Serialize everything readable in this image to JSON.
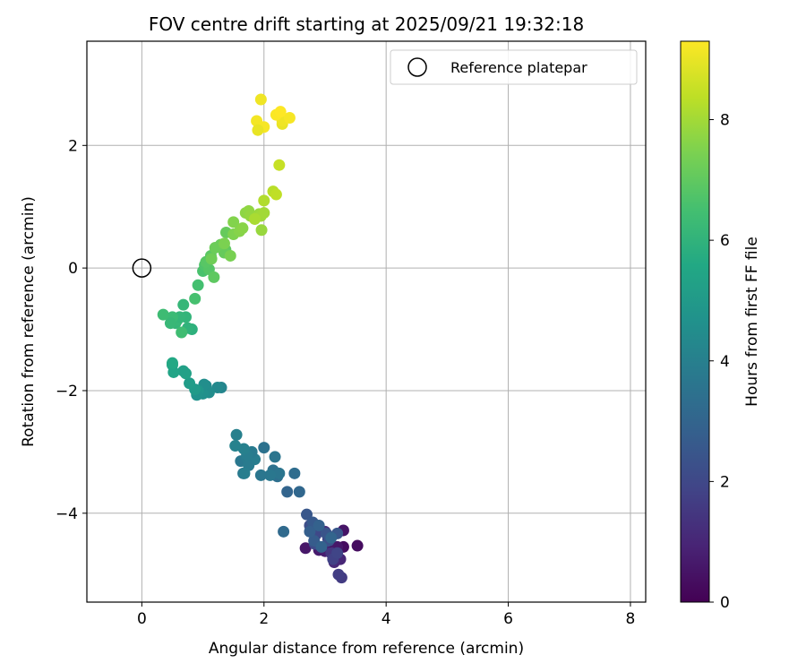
{
  "chart_data": {
    "type": "scatter",
    "title": "FOV centre drift starting at 2025/09/21 19:32:18",
    "xlabel": "Angular distance from reference (arcmin)",
    "ylabel": "Rotation from reference (arcmin)",
    "xlim": [
      -0.9,
      8.25
    ],
    "ylim": [
      -5.45,
      3.7
    ],
    "xticks": [
      0,
      2,
      4,
      6,
      8
    ],
    "yticks": [
      -4,
      -2,
      0,
      2
    ],
    "xtick_labels": [
      "0",
      "2",
      "4",
      "6",
      "8"
    ],
    "ytick_labels": [
      "−4",
      "−2",
      "0",
      "2"
    ],
    "grid": true,
    "legend": {
      "position": "top-right",
      "label": "Reference platepar",
      "marker": "open-circle"
    },
    "reference_point": {
      "x": 0,
      "y": 0
    },
    "colorbar": {
      "label": "Hours from first FF file",
      "min": 0,
      "max": 9.3,
      "ticks": [
        0,
        2,
        4,
        6,
        8
      ],
      "tick_labels": [
        "0",
        "2",
        "4",
        "6",
        "8"
      ],
      "colormap": "viridis"
    },
    "series": [
      {
        "name": "FOV centre drift",
        "x": [
          3.1,
          3.3,
          3.53,
          3.3,
          3.2,
          2.68,
          2.9,
          3.0,
          3.25,
          3.15,
          3.0,
          3.05,
          3.1,
          3.27,
          3.22,
          3.13,
          3.2,
          2.85,
          2.83,
          2.75,
          3.06,
          3.02,
          3.2,
          2.7,
          2.8,
          2.82,
          2.75,
          2.9,
          3.1,
          2.94,
          2.32,
          2.38,
          2.58,
          2.5,
          2.22,
          2.15,
          2.25,
          2.1,
          2.0,
          2.18,
          1.62,
          1.72,
          1.85,
          1.75,
          1.66,
          1.55,
          1.8,
          1.72,
          1.67,
          1.68,
          1.53,
          1.95,
          1.3,
          1.24,
          1.05,
          1.1,
          1.0,
          1.02,
          0.92,
          0.9,
          0.87,
          0.78,
          0.72,
          0.68,
          0.5,
          0.52,
          0.5,
          0.82,
          0.75,
          0.72,
          0.68,
          0.55,
          0.58,
          0.62,
          0.5,
          0.47,
          0.35,
          0.65,
          0.92,
          0.87,
          1.0,
          1.03,
          1.1,
          1.05,
          1.13,
          1.18,
          1.37,
          1.38,
          1.35,
          1.29,
          1.2,
          1.14,
          1.45,
          1.35,
          1.5,
          1.5,
          1.6,
          1.65,
          1.7,
          1.75,
          1.78,
          1.85,
          1.92,
          1.95,
          2.0,
          1.96,
          1.85,
          2.0,
          2.15,
          2.2,
          2.25,
          2.3,
          2.3,
          2.42,
          2.2,
          2.27,
          1.95,
          1.88,
          2.0,
          1.9
        ],
        "y": [
          -4.6,
          -4.55,
          -4.53,
          -4.28,
          -4.55,
          -4.57,
          -4.6,
          -4.62,
          -4.75,
          -4.8,
          -4.3,
          -4.42,
          -4.65,
          -5.05,
          -5.0,
          -4.75,
          -4.65,
          -4.35,
          -4.5,
          -4.2,
          -4.45,
          -4.33,
          -4.33,
          -4.02,
          -4.15,
          -4.45,
          -4.3,
          -4.2,
          -4.4,
          -4.55,
          -4.3,
          -3.65,
          -3.65,
          -3.35,
          -3.4,
          -3.3,
          -3.35,
          -3.38,
          -2.93,
          -3.08,
          -3.15,
          -3.1,
          -3.12,
          -3.22,
          -3.35,
          -2.72,
          -3.0,
          -3.05,
          -2.95,
          -3.35,
          -2.9,
          -3.38,
          -1.95,
          -1.95,
          -1.92,
          -2.03,
          -2.05,
          -1.9,
          -2.0,
          -2.07,
          -1.98,
          -1.88,
          -1.72,
          -1.68,
          -1.58,
          -1.7,
          -1.55,
          -1.0,
          -0.98,
          -0.8,
          -0.6,
          -0.9,
          -0.85,
          -0.8,
          -0.8,
          -0.9,
          -0.76,
          -1.05,
          -0.28,
          -0.5,
          -0.05,
          0.05,
          -0.02,
          0.1,
          0.2,
          -0.15,
          0.3,
          0.58,
          0.25,
          0.38,
          0.33,
          0.15,
          0.2,
          0.4,
          0.55,
          0.75,
          0.6,
          0.65,
          0.9,
          0.93,
          0.85,
          0.8,
          0.88,
          0.85,
          0.9,
          0.62,
          0.8,
          1.1,
          1.25,
          1.2,
          1.68,
          2.35,
          2.4,
          2.45,
          2.5,
          2.55,
          2.75,
          2.4,
          2.3,
          2.25
        ],
        "t": [
          0.2,
          0.3,
          0.3,
          0.5,
          0.6,
          0.6,
          0.7,
          0.8,
          1.0,
          1.1,
          1.2,
          1.4,
          1.5,
          1.6,
          1.7,
          1.8,
          1.9,
          2.0,
          2.1,
          2.2,
          2.3,
          2.4,
          2.5,
          2.5,
          2.6,
          2.7,
          2.8,
          2.9,
          3.0,
          2.95,
          3.2,
          3.0,
          3.1,
          3.3,
          3.4,
          3.5,
          3.6,
          3.7,
          3.5,
          3.6,
          3.7,
          3.8,
          3.9,
          3.85,
          3.7,
          4.0,
          3.8,
          3.9,
          4.0,
          3.95,
          4.1,
          3.65,
          4.2,
          4.35,
          4.4,
          4.5,
          4.6,
          4.55,
          4.8,
          4.7,
          5.0,
          5.1,
          5.3,
          5.25,
          5.5,
          5.4,
          5.6,
          5.9,
          6.0,
          6.05,
          6.15,
          6.1,
          6.2,
          6.1,
          6.3,
          6.2,
          6.35,
          6.4,
          6.5,
          6.55,
          6.6,
          6.7,
          6.8,
          6.85,
          6.9,
          6.95,
          7.0,
          7.1,
          7.1,
          7.15,
          7.2,
          7.25,
          7.4,
          7.45,
          7.5,
          7.55,
          7.6,
          7.65,
          7.7,
          7.75,
          7.8,
          7.85,
          7.9,
          7.95,
          8.0,
          7.85,
          8.1,
          8.2,
          8.3,
          8.4,
          8.5,
          9.0,
          9.1,
          9.2,
          9.25,
          9.3,
          9.1,
          9.15,
          9.2,
          9.0
        ]
      }
    ]
  }
}
